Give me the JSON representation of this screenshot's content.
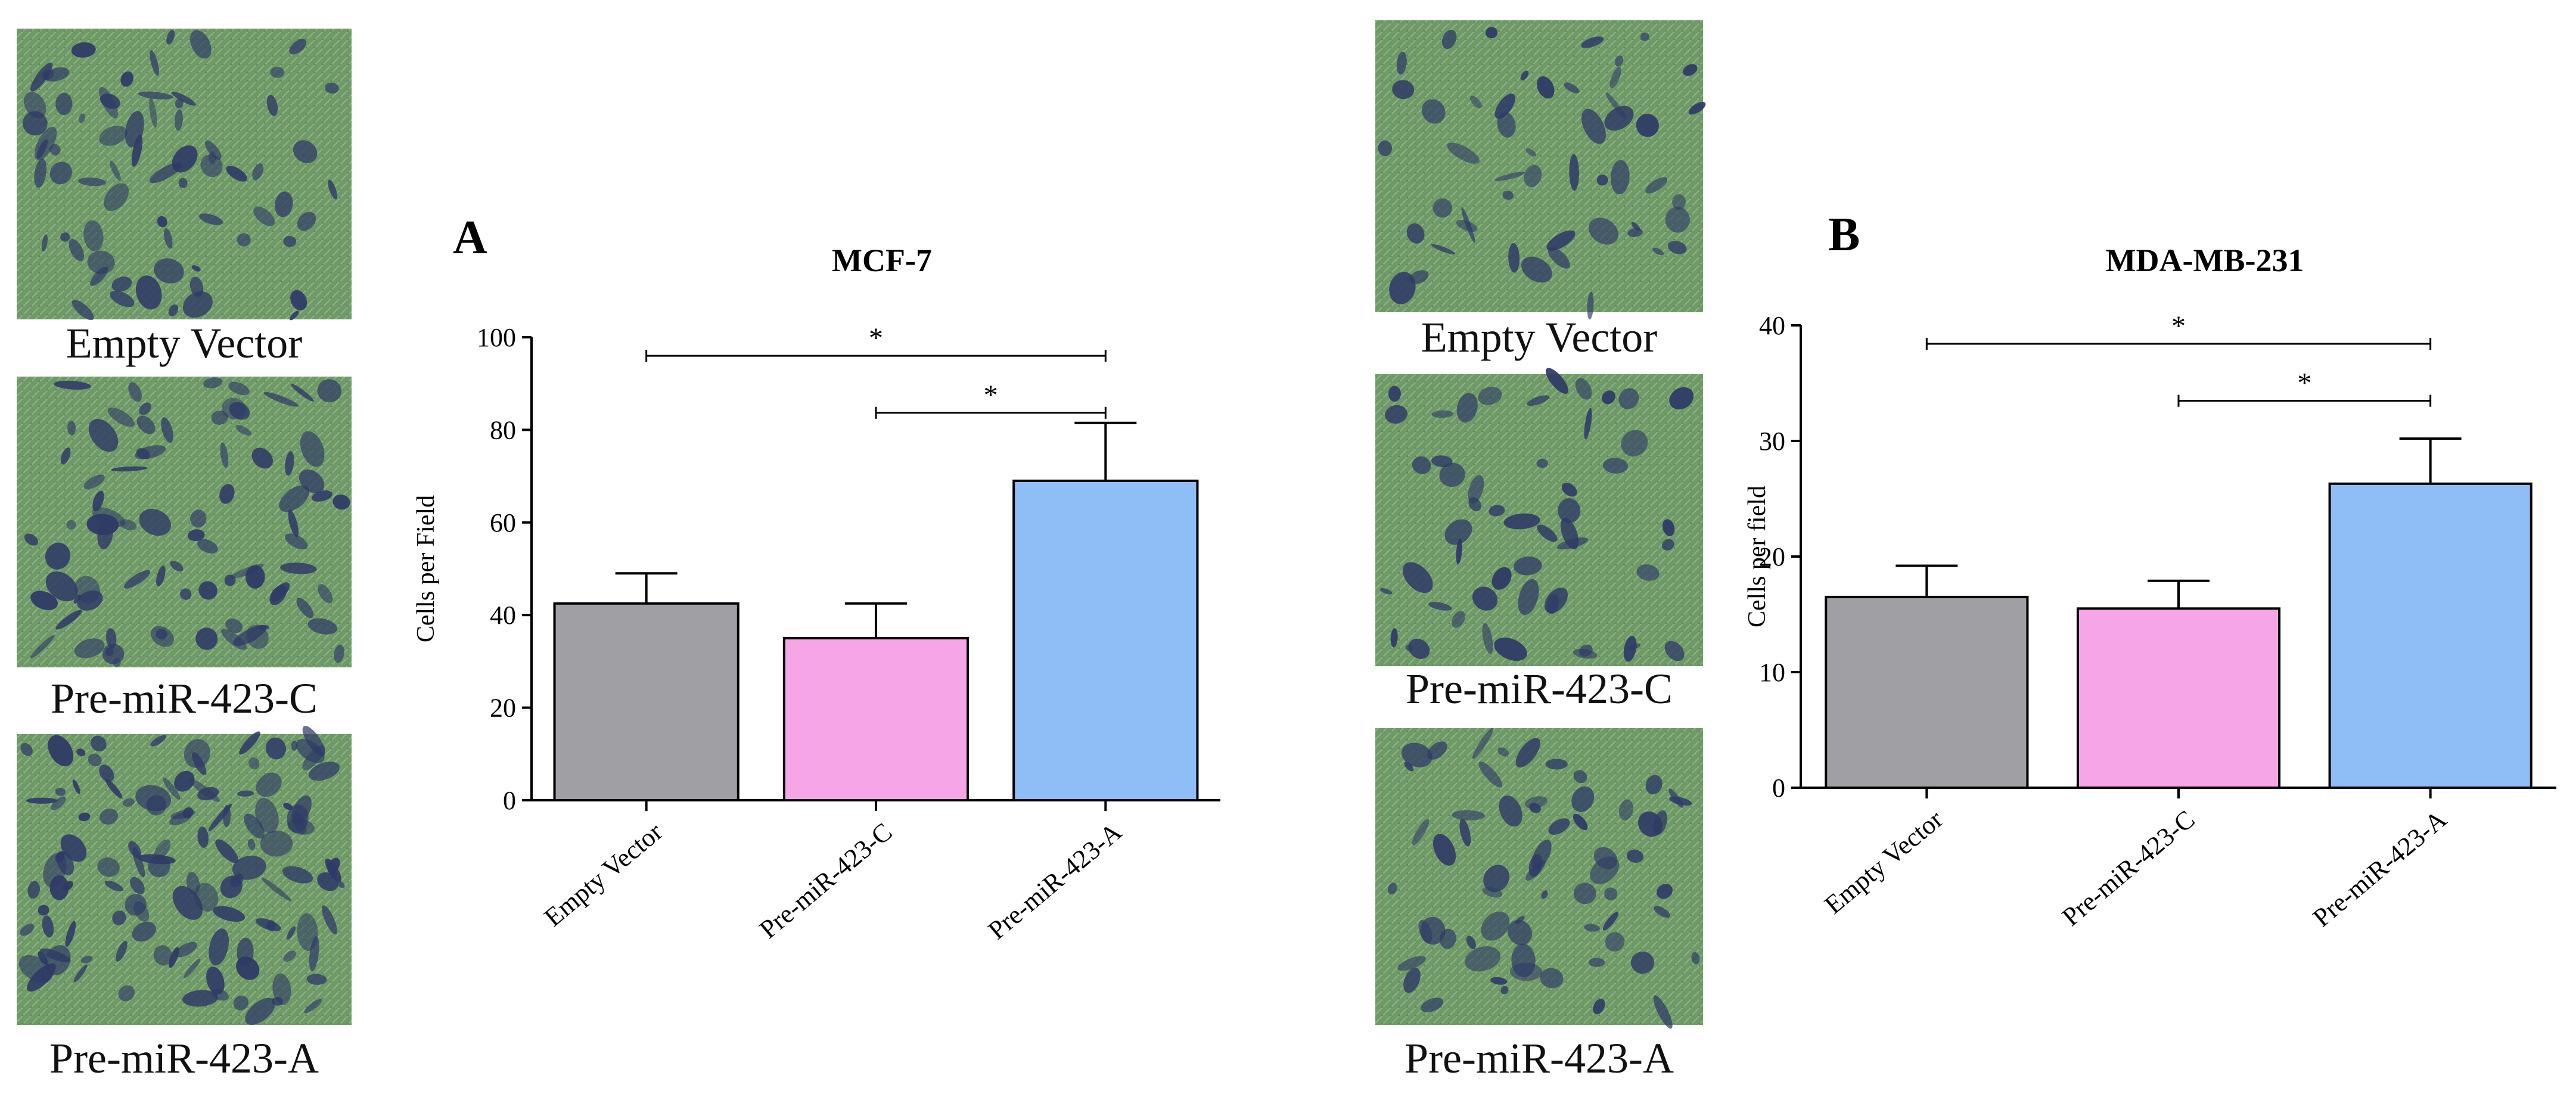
{
  "panels": [
    {
      "letter": "A",
      "captions": [
        "Empty Vector",
        "Pre-miR-423-C",
        "Pre-miR-423-A"
      ]
    },
    {
      "letter": "B",
      "captions": [
        "Empty Vector",
        "Pre-miR-423-C",
        "Pre-miR-423-A"
      ]
    }
  ],
  "micrograph_colors": {
    "background": "#6f9a67",
    "cells": "#2f3a66"
  },
  "micrograph_density": [
    0.35,
    0.45,
    0.8,
    0.18,
    0.2,
    0.3
  ],
  "chart_data": [
    {
      "type": "bar",
      "title": "MCF-7",
      "xlabel": "",
      "ylabel": "Cells per Field",
      "categories": [
        "Empty Vector",
        "Pre-miR-423-C",
        "Pre-miR-423-A"
      ],
      "values": [
        42.5,
        35,
        69
      ],
      "errors": [
        6.5,
        7.5,
        12.5
      ],
      "colors": [
        "#a09fa4",
        "#f6a6e6",
        "#8fbdf6"
      ],
      "ylim": [
        0,
        100
      ],
      "yticks": [
        "0",
        "20",
        "40",
        "60",
        "80",
        "100"
      ],
      "grid": false,
      "significance": [
        {
          "from": 0,
          "to": 2,
          "label": "*"
        },
        {
          "from": 1,
          "to": 2,
          "label": "*"
        }
      ]
    },
    {
      "type": "bar",
      "title": "MDA-MB-231",
      "xlabel": "",
      "ylabel": "Cells per field",
      "categories": [
        "Empty Vector",
        "Pre-miR-423-C",
        "Pre-miR-423-A"
      ],
      "values": [
        16.5,
        15.5,
        26.3
      ],
      "errors": [
        2.7,
        2.4,
        3.9
      ],
      "colors": [
        "#a09fa4",
        "#f6a6e6",
        "#8fbdf6"
      ],
      "ylim": [
        0,
        40
      ],
      "yticks": [
        "0",
        "10",
        "20",
        "30",
        "40"
      ],
      "grid": false,
      "significance": [
        {
          "from": 0,
          "to": 2,
          "label": "*"
        },
        {
          "from": 1,
          "to": 2,
          "label": "*"
        }
      ]
    }
  ]
}
